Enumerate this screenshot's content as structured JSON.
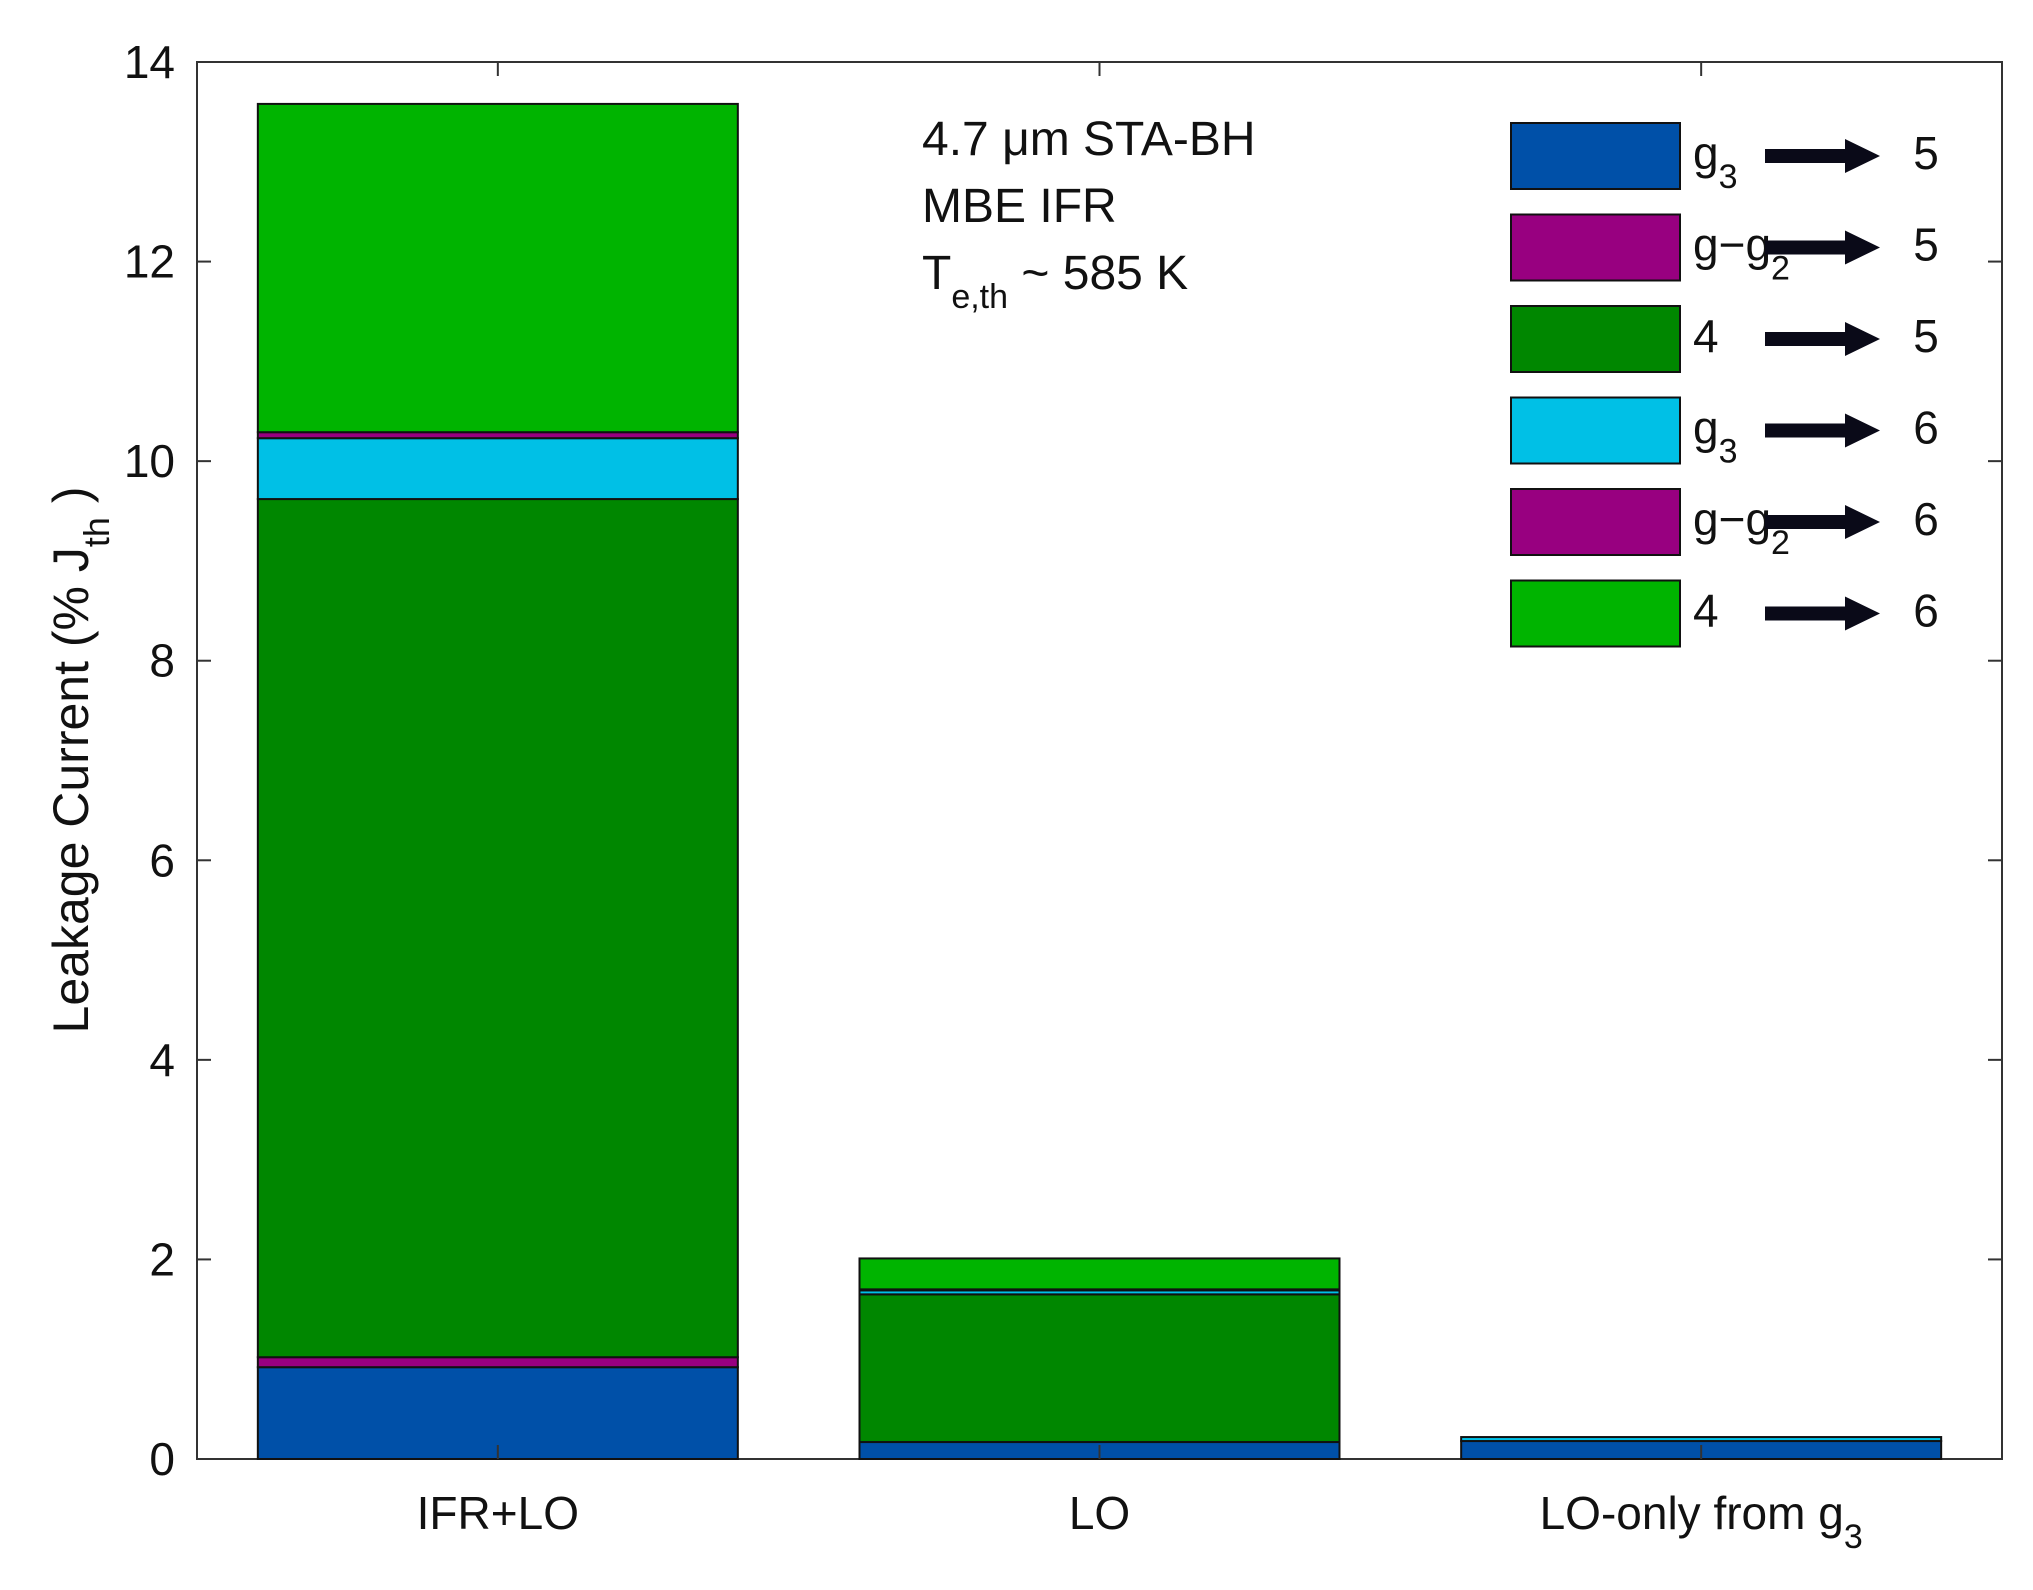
{
  "chart_data": {
    "type": "bar",
    "stacked": true,
    "categories": [
      {
        "main": "IFR+LO",
        "sub": ""
      },
      {
        "main": "LO",
        "sub": ""
      },
      {
        "main": "LO-only from g",
        "sub": "3"
      }
    ],
    "ylabel": {
      "main": "Leakage Current (% J",
      "sub": "th",
      "close": " )"
    },
    "ylim": [
      0,
      14
    ],
    "yticks": [
      0,
      2,
      4,
      6,
      8,
      10,
      12,
      14
    ],
    "grid": false,
    "legend_position": "top-right",
    "annotation": {
      "line1": "4.7 μm STA-BH",
      "line2": "MBE IFR",
      "line3_main": "T",
      "line3_sub": "e,th",
      "line3_rest": " ~ 585 K"
    },
    "series": [
      {
        "from": "g",
        "from_sub": "3",
        "to": "5",
        "color": "#0050a8",
        "values": [
          0.92,
          0.17,
          0.18
        ]
      },
      {
        "from": "g−g",
        "from_sub": "2",
        "to": "5",
        "color": "#980080",
        "values": [
          0.1,
          0.0,
          0.0
        ]
      },
      {
        "from": "4",
        "from_sub": "",
        "to": "5",
        "color": "#008700",
        "values": [
          8.6,
          1.48,
          0.0
        ]
      },
      {
        "from": "g",
        "from_sub": "3",
        "to": "6",
        "color": "#00c0e6",
        "values": [
          0.61,
          0.04,
          0.04
        ]
      },
      {
        "from": "g−g",
        "from_sub": "2",
        "to": "6",
        "color": "#980080",
        "values": [
          0.06,
          0.01,
          0.0
        ]
      },
      {
        "from": "4",
        "from_sub": "",
        "to": "6",
        "color": "#00b400",
        "values": [
          3.29,
          0.31,
          0.0
        ]
      }
    ]
  }
}
